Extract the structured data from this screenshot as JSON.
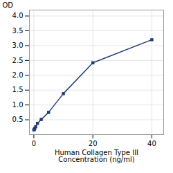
{
  "chart_data": {
    "type": "line",
    "x": [
      0,
      0.156,
      0.313,
      0.625,
      1.25,
      2.5,
      5,
      10,
      20,
      40
    ],
    "values": [
      0.158,
      0.175,
      0.21,
      0.265,
      0.38,
      0.51,
      0.75,
      1.38,
      2.42,
      3.2
    ],
    "color": "#1f3c6e",
    "marker": "square",
    "xlabel": "Human Collagen Type III\nConcentration (ng/ml)",
    "ylabel": "OD",
    "xlim": [
      -1.5,
      44
    ],
    "ylim": [
      0,
      4.2
    ],
    "xticks": [
      0,
      20,
      40
    ],
    "yticks": [
      0.5,
      {
        "value": 1,
        "label": "1.0"
      },
      1.5,
      {
        "value": 2,
        "label": "2.0"
      },
      2.5,
      {
        "value": 3,
        "label": "3.0"
      },
      3.5,
      {
        "value": 4,
        "label": "4.0"
      }
    ],
    "grid": true
  }
}
